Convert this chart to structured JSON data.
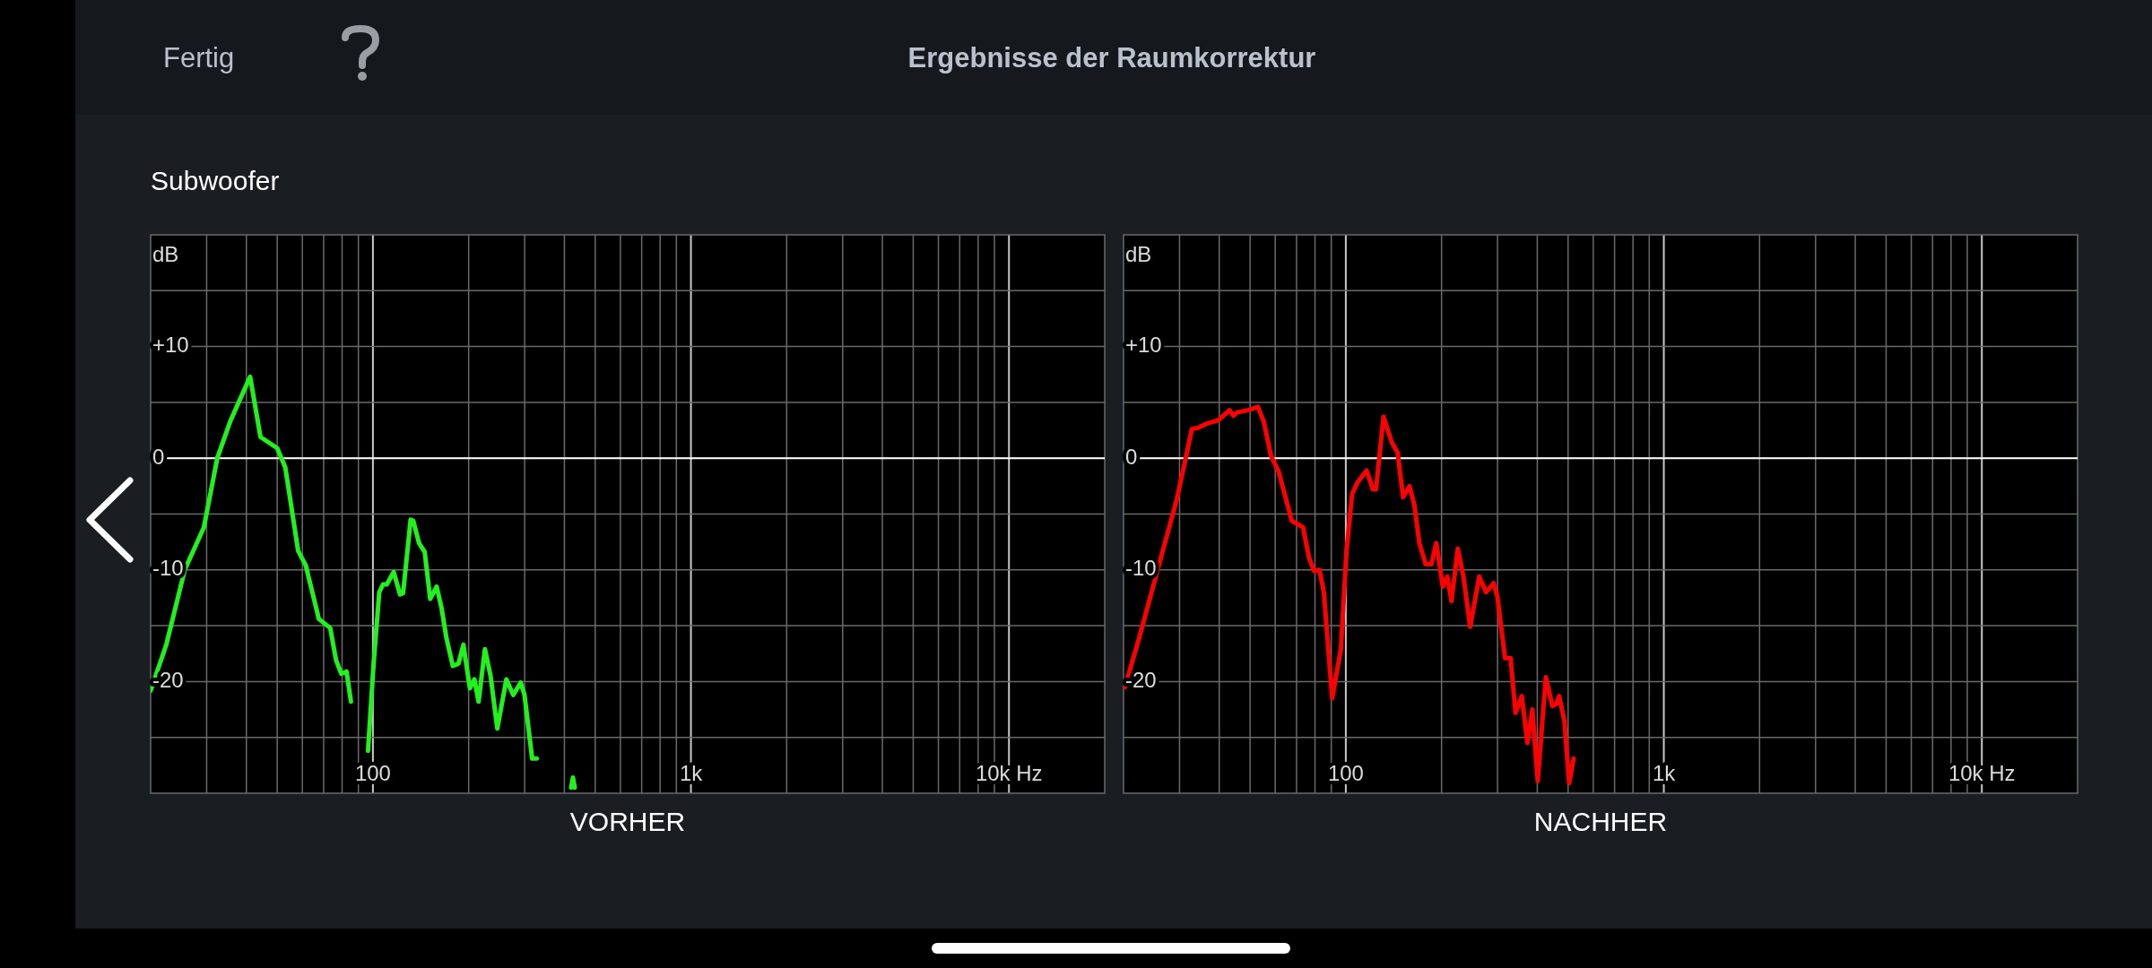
{
  "chart_data": [
    {
      "type": "line",
      "title": "Ergebnisse der Raumkorrektur",
      "subtitle": "Subwoofer",
      "annotations": [
        "Fertig"
      ],
      "xlabel": "VORHER",
      "ylabel": "dB",
      "log": "x",
      "grid": true,
      "xlim": [
        20,
        20000
      ],
      "ylim": [
        -30,
        20
      ],
      "xticks": [
        {
          "value": 30,
          "label": null
        },
        {
          "value": 40,
          "label": null
        },
        {
          "value": 50,
          "label": null
        },
        {
          "value": 60,
          "label": null
        },
        {
          "value": 70,
          "label": null
        },
        {
          "value": 80,
          "label": null
        },
        {
          "value": 90,
          "label": null
        },
        {
          "value": 100,
          "label": "100"
        },
        {
          "value": 200,
          "label": null
        },
        {
          "value": 300,
          "label": null
        },
        {
          "value": 400,
          "label": null
        },
        {
          "value": 500,
          "label": null
        },
        {
          "value": 600,
          "label": null
        },
        {
          "value": 700,
          "label": null
        },
        {
          "value": 800,
          "label": null
        },
        {
          "value": 900,
          "label": null
        },
        {
          "value": 1000,
          "label": "1k"
        },
        {
          "value": 2000,
          "label": null
        },
        {
          "value": 3000,
          "label": null
        },
        {
          "value": 4000,
          "label": null
        },
        {
          "value": 5000,
          "label": null
        },
        {
          "value": 6000,
          "label": null
        },
        {
          "value": 7000,
          "label": null
        },
        {
          "value": 8000,
          "label": null
        },
        {
          "value": 9000,
          "label": null
        },
        {
          "value": 10000,
          "label": "10k Hz"
        }
      ],
      "yticks": [
        {
          "value": -25,
          "label": null
        },
        {
          "value": -20,
          "label": "-20"
        },
        {
          "value": -15,
          "label": null
        },
        {
          "value": -10,
          "label": "-10"
        },
        {
          "value": -5,
          "label": null
        },
        {
          "value": 0,
          "label": "0"
        },
        {
          "value": 5,
          "label": null
        },
        {
          "value": 10,
          "label": "+10"
        },
        {
          "value": 15,
          "label": null
        }
      ],
      "ref_lines": [
        {
          "axis": "y",
          "value": 0,
          "color": "#ffffff"
        }
      ],
      "series": [
        {
          "color": "#22f21c",
          "x": [
            20,
            22.4,
            25.6,
            29.4,
            32.4,
            35.6,
            41.1,
            44.3,
            50,
            53,
            58.2,
            61.5,
            67.6,
            73.4,
            76.6,
            79.5,
            82.6,
            85.3,
            90.6,
            96.5,
            100.5,
            104.7,
            107.6,
            110.6,
            116.2,
            121.7,
            124.4,
            131.4,
            133.9,
            139.6,
            145.5,
            151.4,
            158.6,
            164.3,
            170.3,
            178.3,
            185.8,
            192.5,
            201.8,
            208.5,
            214.9,
            225,
            234.4,
            246.1,
            262.8,
            276.1,
            291.6,
            299.7,
            316.7,
            327.3,
            336.5,
            380,
            420,
            425.6,
            431
          ],
          "values": [
            -20.8,
            -16.7,
            -10,
            -6.2,
            0,
            3.3,
            7.3,
            1.9,
            0.9,
            -0.8,
            -8.3,
            -9.6,
            -14.4,
            -15.2,
            -18.1,
            -19.3,
            -19.1,
            -21.8,
            null,
            -26.2,
            -18.4,
            -12,
            -11.3,
            -11.3,
            -10.2,
            -12.2,
            -12.1,
            -5.5,
            -5.6,
            -7.6,
            -8.4,
            -12.6,
            -11.5,
            -13.4,
            -16.1,
            -18.6,
            -18.4,
            -16.7,
            -20.6,
            -19.8,
            -21.8,
            -17.1,
            -19.5,
            -24.2,
            -19.8,
            -21.2,
            -20.1,
            -21.2,
            -26.9,
            -26.9,
            null,
            null,
            -29.5,
            -28.6,
            -29.5
          ]
        }
      ]
    },
    {
      "type": "line",
      "xlabel": "NACHHER",
      "ylabel": "dB",
      "log": "x",
      "grid": true,
      "xlim": [
        20,
        20000
      ],
      "ylim": [
        -30,
        20
      ],
      "xticks": [
        {
          "value": 30,
          "label": null
        },
        {
          "value": 40,
          "label": null
        },
        {
          "value": 50,
          "label": null
        },
        {
          "value": 60,
          "label": null
        },
        {
          "value": 70,
          "label": null
        },
        {
          "value": 80,
          "label": null
        },
        {
          "value": 90,
          "label": null
        },
        {
          "value": 100,
          "label": "100"
        },
        {
          "value": 200,
          "label": null
        },
        {
          "value": 300,
          "label": null
        },
        {
          "value": 400,
          "label": null
        },
        {
          "value": 500,
          "label": null
        },
        {
          "value": 600,
          "label": null
        },
        {
          "value": 700,
          "label": null
        },
        {
          "value": 800,
          "label": null
        },
        {
          "value": 900,
          "label": null
        },
        {
          "value": 1000,
          "label": "1k"
        },
        {
          "value": 2000,
          "label": null
        },
        {
          "value": 3000,
          "label": null
        },
        {
          "value": 4000,
          "label": null
        },
        {
          "value": 5000,
          "label": null
        },
        {
          "value": 6000,
          "label": null
        },
        {
          "value": 7000,
          "label": null
        },
        {
          "value": 8000,
          "label": null
        },
        {
          "value": 9000,
          "label": null
        },
        {
          "value": 10000,
          "label": "10k Hz"
        }
      ],
      "yticks": [
        {
          "value": -25,
          "label": null
        },
        {
          "value": -20,
          "label": "-20"
        },
        {
          "value": -15,
          "label": null
        },
        {
          "value": -10,
          "label": "-10"
        },
        {
          "value": -5,
          "label": null
        },
        {
          "value": 0,
          "label": "0"
        },
        {
          "value": 5,
          "label": null
        },
        {
          "value": 10,
          "label": "+10"
        },
        {
          "value": 15,
          "label": null
        }
      ],
      "ref_lines": [
        {
          "axis": "y",
          "value": 0,
          "color": "#ffffff"
        }
      ],
      "series": [
        {
          "color": "#ff0000",
          "x": [
            20.2,
            22.4,
            25.6,
            29.4,
            31.1,
            32.8,
            34.2,
            36.6,
            39.7,
            43.1,
            44.3,
            45.5,
            49.4,
            52.9,
            55.2,
            58.2,
            61.5,
            67.6,
            73.4,
            76.6,
            79.5,
            82.6,
            85.3,
            90.6,
            96.5,
            100.5,
            104.7,
            108.7,
            116.2,
            121.7,
            124.4,
            131.4,
            139.6,
            145.5,
            151.4,
            158.6,
            164.3,
            170.3,
            178.3,
            185.8,
            192.5,
            201.8,
            208.5,
            214.9,
            225,
            234.4,
            246.1,
            262.8,
            276.1,
            291.6,
            299.7,
            316.7,
            329.7,
            341.7,
            357.6,
            372.6,
            386,
            401.3,
            425.6,
            446.3,
            459.2,
            468.6,
            486.7,
            503.9,
            520.4
          ],
          "values": [
            -20.5,
            -16.1,
            -10,
            -3.7,
            -0.5,
            2.6,
            2.7,
            3.1,
            3.4,
            4.3,
            3.8,
            4.1,
            4.3,
            4.6,
            3.3,
            0.2,
            -1.2,
            -5.6,
            -6.2,
            -8.9,
            -10.1,
            -10,
            -12,
            -21.5,
            -17.1,
            -8.3,
            -3.2,
            -2.2,
            -1.1,
            -2.8,
            -2.8,
            3.7,
            1.4,
            0.5,
            -3.5,
            -2.5,
            -4.2,
            -7.6,
            -9.5,
            -9.5,
            -7.6,
            -11.5,
            -10.6,
            -12.8,
            -8.1,
            -10.6,
            -15.1,
            -10.6,
            -12,
            -11.2,
            -12.4,
            -17.9,
            -17.9,
            -22.8,
            -21.3,
            -25.5,
            -22.5,
            -28.9,
            -19.6,
            -22.2,
            -22,
            -21.3,
            -23.5,
            -29.1,
            -26.9
          ]
        }
      ]
    }
  ]
}
